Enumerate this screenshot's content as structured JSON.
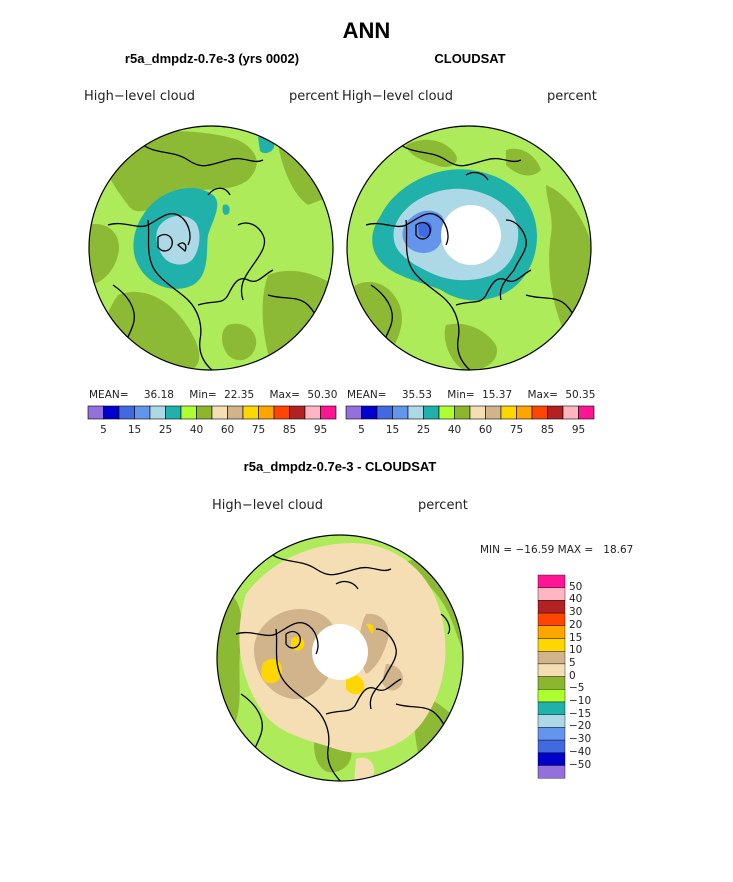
{
  "title": "ANN",
  "colors": {
    "palette": [
      "#9370DB",
      "#0000CD",
      "#4169E1",
      "#6495ED",
      "#ADD8E6",
      "#20B2AA",
      "#ADFF2F",
      "#8DB62F",
      "#F5DEB3",
      "#D2B48C",
      "#FFD700",
      "#FFA500",
      "#FF4500",
      "#B22222",
      "#FFB6C1",
      "#FF1493"
    ],
    "ocean_fill": "#ADEB5A",
    "land_fill": "#8DBA35",
    "polar_hole": "#FFFFFF",
    "coast": "#000000"
  },
  "panels": [
    {
      "title": "r5a_dmpdz-0.7e-3 (yrs 0002)",
      "left_label": "High−level cloud",
      "right_label": "percent",
      "stats": {
        "mean_label": "MEAN=",
        "mean": "36.18",
        "min_label": "Min=",
        "min": "22.35",
        "max_label": "Max=",
        "max": "50.30"
      }
    },
    {
      "title": "CLOUDSAT",
      "left_label": "High−level cloud",
      "right_label": "percent",
      "stats": {
        "mean_label": "MEAN=",
        "mean": "35.53",
        "min_label": "Min=",
        "min": "15.37",
        "max_label": "Max=",
        "max": "50.35"
      }
    }
  ],
  "colorbar_ticks": [
    "5",
    "15",
    "25",
    "40",
    "60",
    "75",
    "85",
    "95"
  ],
  "diff_panel": {
    "title": "r5a_dmpdz-0.7e-3 - CLOUDSAT",
    "left_label": "High−level cloud",
    "right_label": "percent",
    "minmax": "MIN = −16.59 MAX =   18.67",
    "legend_colors": [
      "#FF1493",
      "#FFB6C1",
      "#B22222",
      "#FF4500",
      "#FFA500",
      "#FFD700",
      "#D2B48C",
      "#F5DEB3",
      "#8DB62F",
      "#ADFF2F",
      "#20B2AA",
      "#ADD8E6",
      "#6495ED",
      "#4169E1",
      "#0000CD",
      "#9370DB"
    ],
    "legend_labels": [
      "50",
      "40",
      "30",
      "20",
      "15",
      "10",
      "5",
      "0",
      "−5",
      "−10",
      "−15",
      "−20",
      "−30",
      "−40",
      "−50"
    ]
  }
}
